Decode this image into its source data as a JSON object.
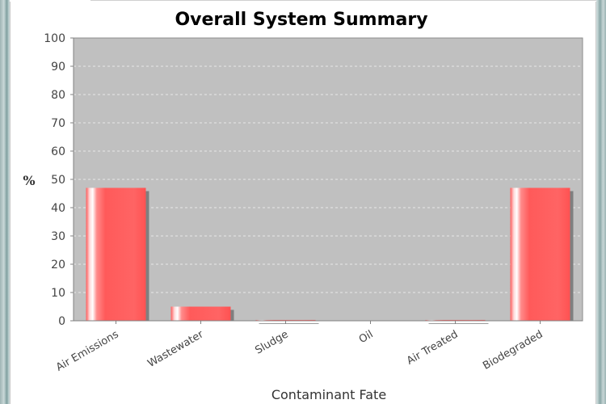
{
  "chart_data": {
    "type": "bar",
    "title": "Overall System Summary",
    "xlabel": "Contaminant Fate",
    "ylabel": "%",
    "categories": [
      "Air Emissions",
      "Wastewater",
      "Sludge",
      "Oil",
      "Air Treated",
      "Biodegraded"
    ],
    "values": [
      47,
      5,
      0.3,
      0,
      0.3,
      47
    ],
    "ylim": [
      0,
      100
    ],
    "yticks": [
      "0",
      "10",
      "20",
      "30",
      "40",
      "50",
      "60",
      "70",
      "80",
      "90",
      "100"
    ],
    "grid": true,
    "legend": "none",
    "colors": {
      "bar": "#ff5a5a",
      "bar_highlight": "#ffffff",
      "bar_shadow": "#7f7f7f",
      "plot_background": "#c0c0c0",
      "gridline": "#e8e8e8"
    }
  }
}
